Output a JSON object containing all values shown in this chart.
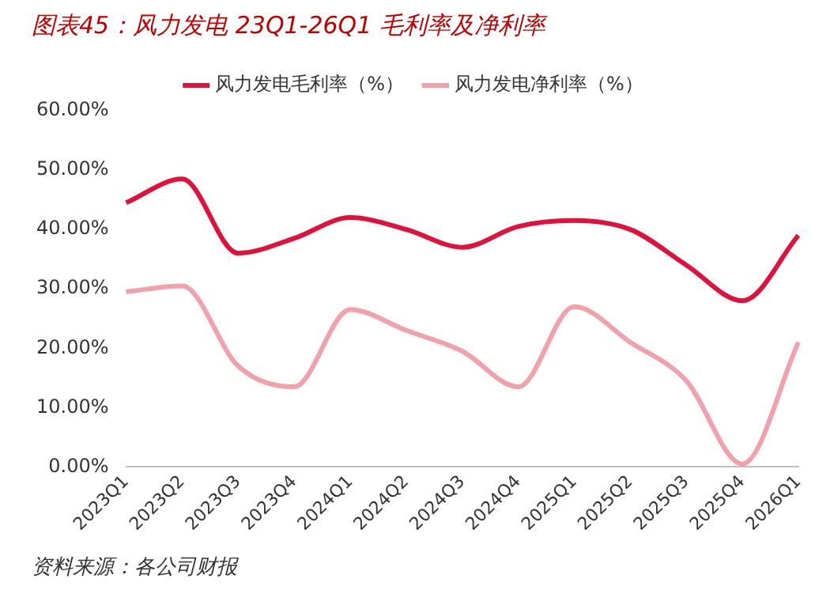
{
  "chart_data": {
    "type": "line",
    "title": "图表45：风力发电 23Q1-26Q1 毛利率及净利率",
    "categories": [
      "2023Q1",
      "2023Q2",
      "2023Q3",
      "2023Q4",
      "2024Q1",
      "2024Q2",
      "2024Q3",
      "2024Q4",
      "2025Q1",
      "2025Q2",
      "2025Q3",
      "2025Q4",
      "2026Q1"
    ],
    "series": [
      {
        "name": "风力发电毛利率（%）",
        "color": "#e0113a",
        "values": [
          44.5,
          48.5,
          36,
          38.5,
          42,
          40,
          37,
          40.5,
          41.5,
          40,
          34,
          28,
          39
        ]
      },
      {
        "name": "风力发电净利率（%）",
        "color": "#f2a0aa",
        "values": [
          29.5,
          30.5,
          17,
          13.5,
          26.5,
          23,
          19.5,
          13.5,
          27,
          21,
          14.5,
          0.5,
          21
        ]
      }
    ],
    "ylim": [
      0,
      60
    ],
    "yticks": [
      {
        "value": 0,
        "label": "0.00%"
      },
      {
        "value": 10,
        "label": "10.00%"
      },
      {
        "value": 20,
        "label": "20.00%"
      },
      {
        "value": 30,
        "label": "30.00%"
      },
      {
        "value": 40,
        "label": "40.00%"
      },
      {
        "value": 50,
        "label": "50.00%"
      },
      {
        "value": 60,
        "label": "60.00%"
      }
    ],
    "grid": false,
    "legend": "top",
    "marker": "none",
    "line_style": "solid",
    "annotations": [
      "资料来源：各公司财报"
    ]
  }
}
